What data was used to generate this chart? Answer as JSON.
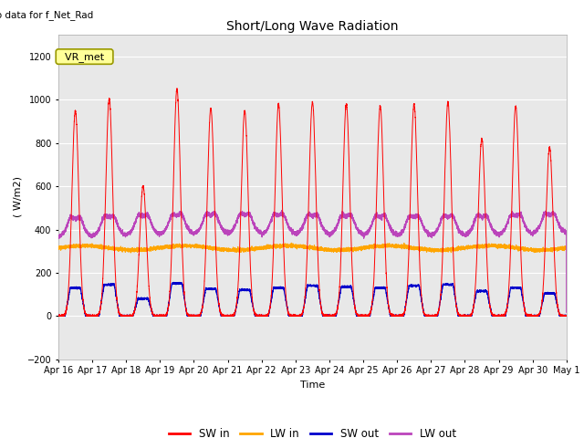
{
  "title": "Short/Long Wave Radiation",
  "xlabel": "Time",
  "ylabel": "( W/m2)",
  "ylim": [
    -200,
    1300
  ],
  "yticks": [
    -200,
    0,
    200,
    400,
    600,
    800,
    1000,
    1200
  ],
  "xlim": [
    0,
    15
  ],
  "xtick_labels": [
    "Apr 16",
    "Apr 17",
    "Apr 18",
    "Apr 19",
    "Apr 20",
    "Apr 21",
    "Apr 22",
    "Apr 23",
    "Apr 24",
    "Apr 25",
    "Apr 26",
    "Apr 27",
    "Apr 28",
    "Apr 29",
    "Apr 30",
    "May 1"
  ],
  "top_left_text": "No data for f_Net_Rad",
  "station_label": "VR_met",
  "colors": {
    "SW_in": "#ff0000",
    "LW_in": "#ffa500",
    "SW_out": "#0000cc",
    "LW_out": "#bb44bb"
  },
  "legend_labels": [
    "SW in",
    "LW in",
    "SW out",
    "LW out"
  ],
  "background_gray": "#e8e8e8",
  "background_white": "#ffffff",
  "sw_in_peaks": [
    950,
    1005,
    600,
    1050,
    960,
    950,
    980,
    990,
    980,
    970,
    980,
    990,
    820,
    970,
    780
  ],
  "sw_out_plateau": [
    130,
    145,
    80,
    150,
    125,
    120,
    130,
    140,
    135,
    130,
    140,
    145,
    115,
    130,
    105
  ],
  "lw_in_base": 315,
  "lw_out_base": 360
}
